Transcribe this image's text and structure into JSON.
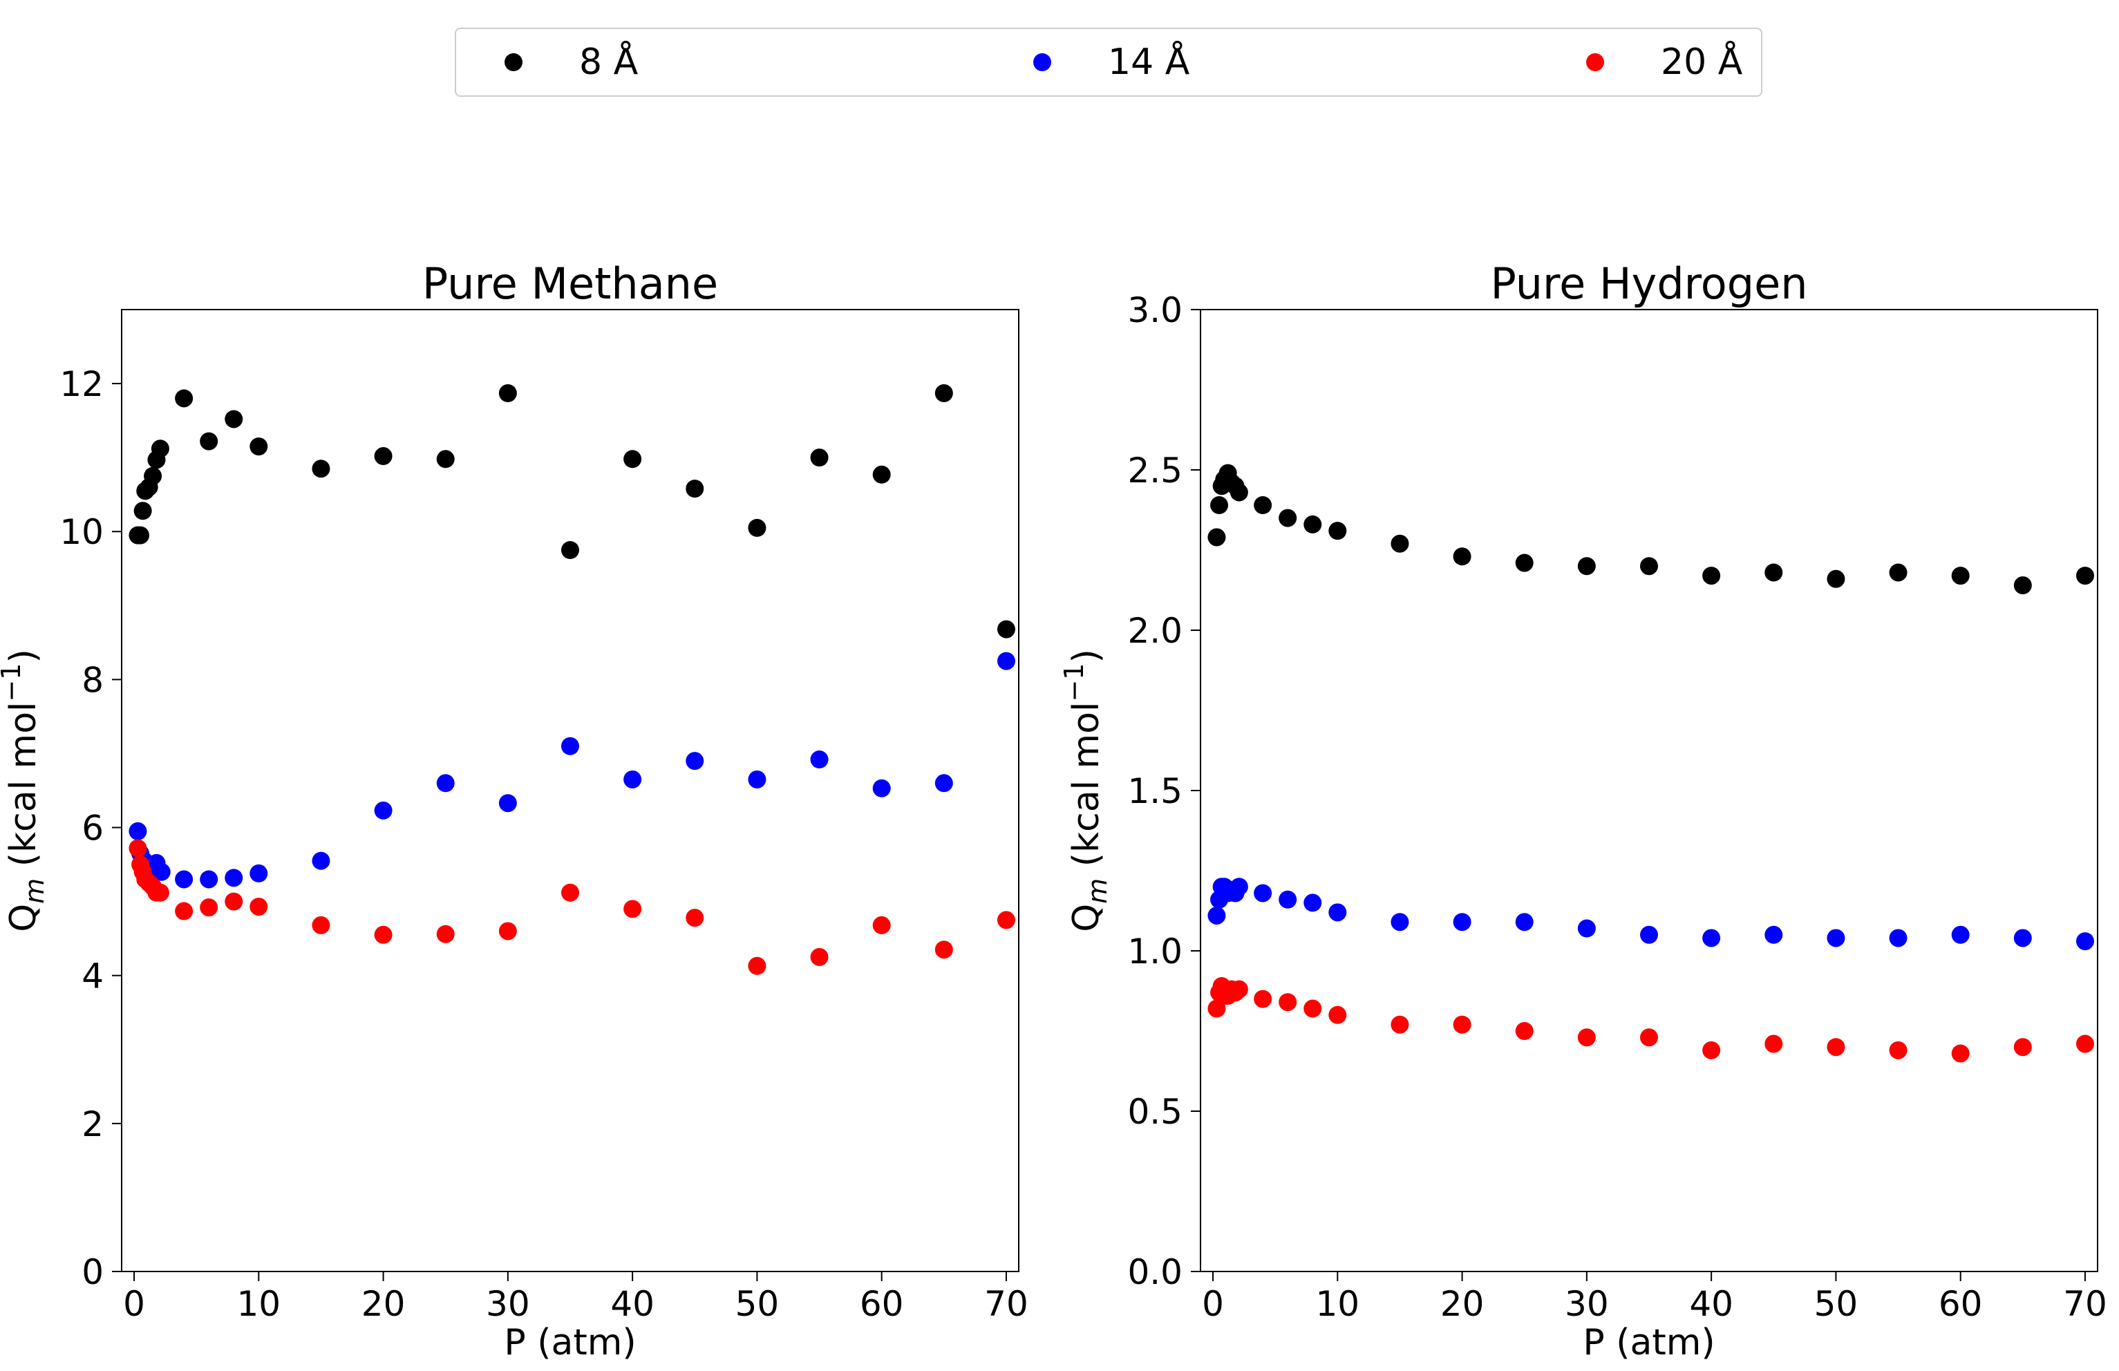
{
  "legend": {
    "entries": [
      {
        "label": "8 Å",
        "color": "#000000"
      },
      {
        "label": "14 Å",
        "color": "#0000ff"
      },
      {
        "label": "20 Å",
        "color": "#ff0000"
      }
    ]
  },
  "chart_data": [
    {
      "type": "scatter",
      "title": "Pure Methane",
      "xlabel": "P (atm)",
      "ylabel_main": "Q",
      "ylabel_sub": "m",
      "ylabel_unit": " (kcal mol",
      "ylabel_sup": "−1",
      "ylabel_close": ")",
      "xlim": [
        -1,
        71
      ],
      "ylim": [
        0,
        13
      ],
      "xticks": [
        0,
        10,
        20,
        30,
        40,
        50,
        60,
        70
      ],
      "yticks": [
        0,
        2,
        4,
        6,
        8,
        10,
        12
      ],
      "ytick_labels": [
        "0",
        "2",
        "4",
        "6",
        "8",
        "10",
        "12"
      ],
      "series": [
        {
          "name": "8 Å",
          "color": "#000000",
          "x": [
            0.3,
            0.5,
            0.7,
            0.9,
            1.2,
            1.5,
            1.8,
            2.1,
            4,
            6,
            8,
            10,
            15,
            20,
            25,
            30,
            35,
            40,
            45,
            50,
            55,
            60,
            65,
            70
          ],
          "y": [
            9.95,
            9.95,
            10.28,
            10.55,
            10.6,
            10.75,
            10.97,
            11.12,
            11.8,
            11.22,
            11.52,
            11.15,
            10.85,
            11.02,
            10.98,
            11.87,
            9.75,
            10.98,
            10.58,
            10.05,
            11.0,
            10.77,
            11.87,
            8.68
          ]
        },
        {
          "name": "14 Å",
          "color": "#0000ff",
          "x": [
            0.3,
            0.5,
            0.8,
            1.1,
            1.5,
            1.8,
            2.2,
            4,
            6,
            8,
            10,
            15,
            20,
            25,
            30,
            35,
            40,
            45,
            50,
            55,
            60,
            65,
            70
          ],
          "y": [
            5.95,
            5.65,
            5.55,
            5.5,
            5.45,
            5.52,
            5.4,
            5.3,
            5.3,
            5.32,
            5.38,
            5.55,
            6.23,
            6.6,
            6.33,
            7.1,
            6.65,
            6.9,
            6.65,
            6.92,
            6.53,
            6.6,
            8.25
          ]
        },
        {
          "name": "20 Å",
          "color": "#ff0000",
          "x": [
            0.3,
            0.5,
            0.7,
            0.9,
            1.2,
            1.5,
            1.8,
            2.1,
            4,
            6,
            8,
            10,
            15,
            20,
            25,
            30,
            35,
            40,
            45,
            50,
            55,
            60,
            65,
            70
          ],
          "y": [
            5.72,
            5.5,
            5.4,
            5.3,
            5.25,
            5.2,
            5.12,
            5.12,
            4.87,
            4.92,
            5.0,
            4.93,
            4.68,
            4.55,
            4.56,
            4.6,
            5.12,
            4.9,
            4.78,
            4.13,
            4.25,
            4.68,
            4.35,
            4.75
          ]
        }
      ]
    },
    {
      "type": "scatter",
      "title": "Pure Hydrogen",
      "xlabel": "P (atm)",
      "ylabel_main": "Q",
      "ylabel_sub": "m",
      "ylabel_unit": " (kcal mol",
      "ylabel_sup": "−1",
      "ylabel_close": ")",
      "xlim": [
        -1,
        71
      ],
      "ylim": [
        0,
        3
      ],
      "xticks": [
        0,
        10,
        20,
        30,
        40,
        50,
        60,
        70
      ],
      "yticks": [
        0,
        0.5,
        1.0,
        1.5,
        2.0,
        2.5,
        3.0
      ],
      "ytick_labels": [
        "0.0",
        "0.5",
        "1.0",
        "1.5",
        "2.0",
        "2.5",
        "3.0"
      ],
      "series": [
        {
          "name": "8 Å",
          "color": "#000000",
          "x": [
            0.3,
            0.5,
            0.7,
            0.9,
            1.2,
            1.5,
            1.8,
            2.1,
            4,
            6,
            8,
            10,
            15,
            20,
            25,
            30,
            35,
            40,
            45,
            50,
            55,
            60,
            65,
            70
          ],
          "y": [
            2.29,
            2.39,
            2.45,
            2.47,
            2.49,
            2.46,
            2.45,
            2.43,
            2.39,
            2.35,
            2.33,
            2.31,
            2.27,
            2.23,
            2.21,
            2.2,
            2.2,
            2.17,
            2.18,
            2.16,
            2.18,
            2.17,
            2.14,
            2.17
          ]
        },
        {
          "name": "14 Å",
          "color": "#0000ff",
          "x": [
            0.3,
            0.5,
            0.7,
            0.9,
            1.2,
            1.5,
            1.8,
            2.1,
            4,
            6,
            8,
            10,
            15,
            20,
            25,
            30,
            35,
            40,
            45,
            50,
            55,
            60,
            65,
            70
          ],
          "y": [
            1.11,
            1.16,
            1.2,
            1.2,
            1.18,
            1.19,
            1.18,
            1.2,
            1.18,
            1.16,
            1.15,
            1.12,
            1.09,
            1.09,
            1.09,
            1.07,
            1.05,
            1.04,
            1.05,
            1.04,
            1.04,
            1.05,
            1.04,
            1.03
          ]
        },
        {
          "name": "20 Å",
          "color": "#ff0000",
          "x": [
            0.3,
            0.5,
            0.7,
            0.9,
            1.2,
            1.5,
            1.8,
            2.1,
            4,
            6,
            8,
            10,
            15,
            20,
            25,
            30,
            35,
            40,
            45,
            50,
            55,
            60,
            65,
            70
          ],
          "y": [
            0.82,
            0.87,
            0.89,
            0.86,
            0.86,
            0.88,
            0.87,
            0.88,
            0.85,
            0.84,
            0.82,
            0.8,
            0.77,
            0.77,
            0.75,
            0.73,
            0.73,
            0.69,
            0.71,
            0.7,
            0.69,
            0.68,
            0.7,
            0.71
          ]
        }
      ]
    }
  ]
}
